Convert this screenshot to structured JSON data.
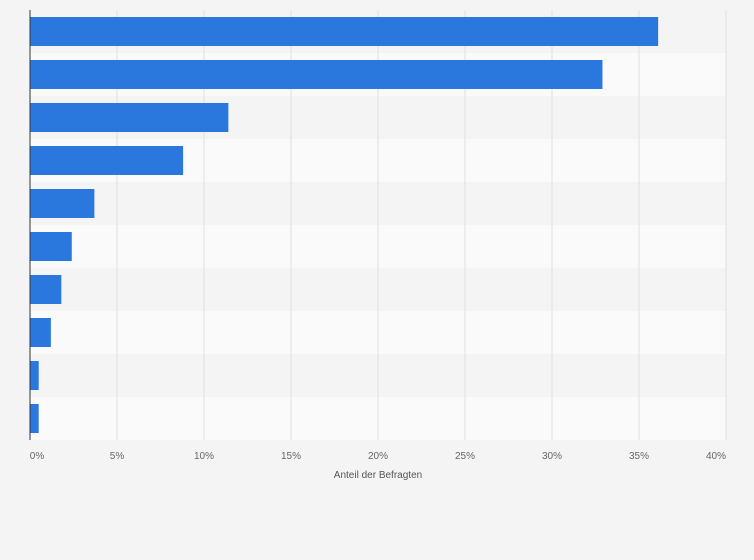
{
  "chart_data": {
    "type": "bar",
    "orientation": "horizontal",
    "title": "",
    "xlabel": "Anteil der Befragten",
    "ylabel": "",
    "categories": [
      "",
      "",
      "",
      "",
      "",
      "",
      "",
      "",
      "",
      ""
    ],
    "values": [
      36.1,
      32.9,
      11.4,
      8.8,
      3.7,
      2.4,
      1.8,
      1.2,
      0.5,
      0.5
    ],
    "xlim": [
      0,
      40
    ],
    "xticks": [
      0,
      5,
      10,
      15,
      20,
      25,
      30,
      35,
      40
    ],
    "xtick_labels": [
      "0%",
      "5%",
      "10%",
      "15%",
      "20%",
      "25%",
      "30%",
      "35%",
      "40%"
    ],
    "grid": true,
    "legend": "none",
    "colors": {
      "bar": "#2a78de",
      "band_a": "#f4f4f4",
      "band_b": "#fafafa",
      "grid": "#e0e0e0",
      "axis": "#333333"
    }
  }
}
